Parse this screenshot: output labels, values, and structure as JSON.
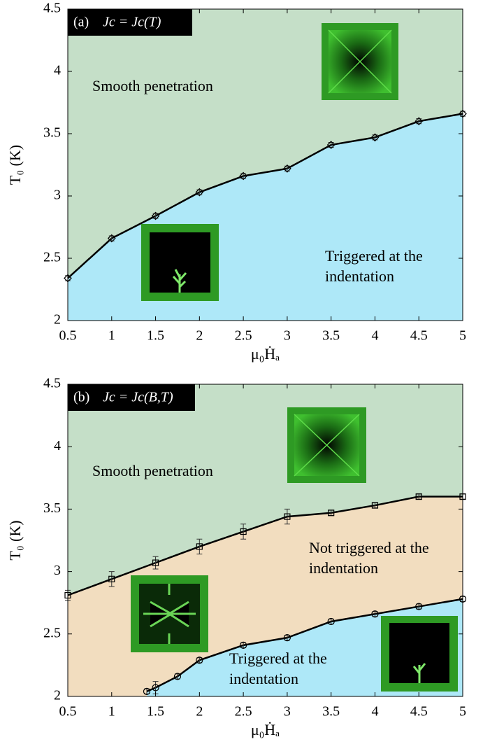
{
  "chart_data": [
    {
      "type": "line",
      "panel_label": "(a)",
      "title": "Jc = Jc(T)",
      "xlabel": "μ₀Ḣₐ",
      "ylabel": "T₀ (K)",
      "xlim": [
        0.5,
        5
      ],
      "ylim": [
        2,
        4.5
      ],
      "xticks": [
        0.5,
        1,
        1.5,
        2,
        2.5,
        3,
        3.5,
        4,
        4.5,
        5
      ],
      "yticks": [
        2,
        2.5,
        3,
        3.5,
        4,
        4.5
      ],
      "background": "#c5dfc8",
      "series": [
        {
          "marker": "diamond",
          "color": "#000000",
          "fill": "#aee8f8",
          "x": [
            0.5,
            1,
            1.5,
            2,
            2.5,
            3,
            3.5,
            4,
            4.5,
            5
          ],
          "values": [
            2.34,
            2.66,
            2.84,
            3.03,
            3.16,
            3.22,
            3.41,
            3.47,
            3.6,
            3.66
          ],
          "errors": [
            0.02,
            0.02,
            0.02,
            0.02,
            0.02,
            0.02,
            0.02,
            0.02,
            0.02,
            0.02
          ]
        }
      ],
      "annotations": [
        {
          "lines": [
            "Smooth penetration"
          ]
        },
        {
          "lines": [
            "Triggered at the",
            "indentation"
          ]
        }
      ]
    },
    {
      "type": "line",
      "panel_label": "(b)",
      "title": "Jc = Jc(B,T)",
      "xlabel": "μ₀Ḣₐ",
      "ylabel": "T₀ (K)",
      "xlim": [
        0.5,
        5
      ],
      "ylim": [
        2,
        4.5
      ],
      "xticks": [
        0.5,
        1,
        1.5,
        2,
        2.5,
        3,
        3.5,
        4,
        4.5,
        5
      ],
      "yticks": [
        2,
        2.5,
        3,
        3.5,
        4,
        4.5
      ],
      "background": "#c5dfc8",
      "series": [
        {
          "marker": "square",
          "color": "#000000",
          "fill": "#f2ddbf",
          "x": [
            0.5,
            1,
            1.5,
            2,
            2.5,
            3,
            3.5,
            4,
            4.5,
            5
          ],
          "values": [
            2.81,
            2.94,
            3.07,
            3.2,
            3.32,
            3.44,
            3.47,
            3.53,
            3.6,
            3.6
          ],
          "errors": [
            0.04,
            0.06,
            0.05,
            0.06,
            0.06,
            0.06,
            0.02,
            0.02,
            0.02,
            0.02
          ]
        },
        {
          "marker": "circle",
          "color": "#000000",
          "fill": "#aee8f8",
          "x": [
            1.4,
            1.5,
            1.75,
            2,
            2.5,
            3,
            3.5,
            4,
            4.5,
            5
          ],
          "values": [
            2.04,
            2.07,
            2.16,
            2.29,
            2.41,
            2.47,
            2.6,
            2.66,
            2.72,
            2.78
          ],
          "errors": [
            0.02,
            0.05,
            0.02,
            0.02,
            0.02,
            0.02,
            0.02,
            0.02,
            0.02,
            0.02
          ]
        }
      ],
      "annotations": [
        {
          "lines": [
            "Smooth penetration"
          ]
        },
        {
          "lines": [
            "Not triggered at the",
            "indentation"
          ]
        },
        {
          "lines": [
            "Triggered at the",
            "indentation"
          ]
        }
      ]
    }
  ]
}
